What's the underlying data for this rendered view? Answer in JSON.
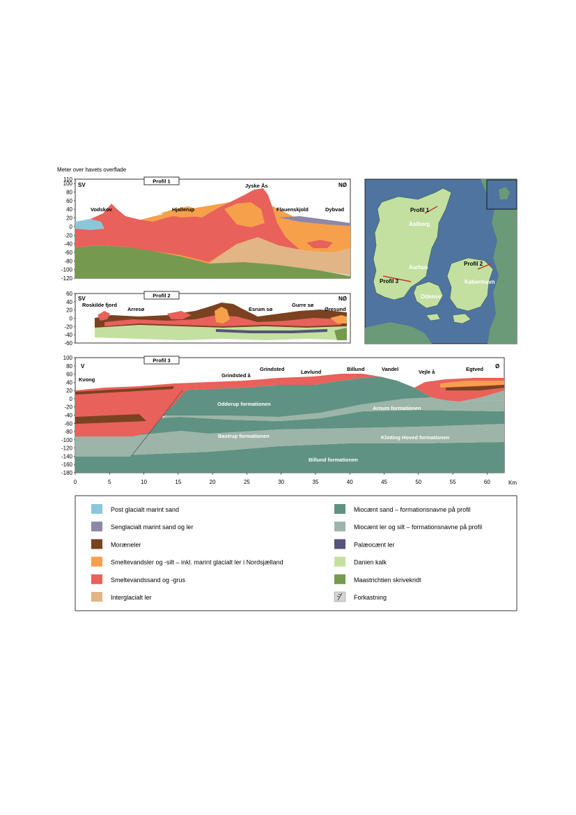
{
  "y_axis_title": "Meter over havets overflade",
  "profile1": {
    "title": "Profil 1",
    "dir_left": "SV",
    "dir_right": "NØ",
    "y_ticks": [
      "110",
      "100",
      "80",
      "60",
      "40",
      "20",
      "0",
      "-20",
      "-40",
      "-60",
      "-80",
      "-100",
      "-120"
    ],
    "places": [
      "Vodskov",
      "Hjallerup",
      "Jyske Ås",
      "Flauenskjold",
      "Dybvad"
    ]
  },
  "profile2": {
    "title": "Profil 2",
    "dir_left": "SV",
    "dir_right": "NØ",
    "y_ticks": [
      "60",
      "40",
      "20",
      "0",
      "-20",
      "-40",
      "-60"
    ],
    "places": [
      "Roskilde fjord",
      "Arresø",
      "Esrum sø",
      "Gurre sø",
      "Øresund"
    ]
  },
  "profile3": {
    "title": "Profil 3",
    "dir_left": "V",
    "dir_right": "Ø",
    "y_ticks": [
      "100",
      "80",
      "60",
      "40",
      "20",
      "0",
      "-20",
      "-40",
      "-60",
      "-80",
      "-100",
      "-120",
      "-140",
      "-160",
      "-180"
    ],
    "x_ticks": [
      "0",
      "5",
      "10",
      "15",
      "20",
      "25",
      "30",
      "35",
      "40",
      "45",
      "50",
      "55",
      "60"
    ],
    "x_unit": "Km",
    "places": [
      "Kvong",
      "Grindsted å",
      "Grindsted",
      "Løvlund",
      "Billund",
      "Vandel",
      "Vejle å",
      "Egtved"
    ],
    "formations": [
      "Odderup formationen",
      "Arnum formationen",
      "Bastrup formationen",
      "Klinting Hoved formationen",
      "Billund formationen"
    ]
  },
  "map": {
    "profile_labels": [
      "Profil 1",
      "Profil 2",
      "Profil 3"
    ],
    "cities": [
      "Aalborg",
      "Aarhus",
      "Odense",
      "København"
    ]
  },
  "legend": {
    "left": [
      {
        "label": "Post glacialt marint sand",
        "color": "#8cc6d9",
        "icon": "swatch"
      },
      {
        "label": "Senglacialt marint sand og ler",
        "color": "#8d87a8",
        "icon": "swatch"
      },
      {
        "label": "Moræneler",
        "color": "#7a4220",
        "icon": "swatch"
      },
      {
        "label": "Smeltevandsler og -silt – inkl. marint glacialt ler i Nordsjælland",
        "color": "#f6a04b",
        "icon": "swatch"
      },
      {
        "label": "Smeltevandssand og -grus",
        "color": "#e8615a",
        "icon": "swatch"
      },
      {
        "label": "Interglacialt ler",
        "color": "#e2b586",
        "icon": "swatch"
      }
    ],
    "right": [
      {
        "label": "Miocænt sand – formationsnavne på profil",
        "color": "#5f9283",
        "icon": "swatch"
      },
      {
        "label": "Miocænt ler og silt – formationsnavne på profil",
        "color": "#9db4a8",
        "icon": "swatch"
      },
      {
        "label": "Palæocænt ler",
        "color": "#55537a",
        "icon": "swatch"
      },
      {
        "label": "Danien kalk",
        "color": "#c3e0a1",
        "icon": "swatch"
      },
      {
        "label": "Maastrichtien skrivekridt",
        "color": "#759a4e",
        "icon": "swatch"
      },
      {
        "label": "Forkastning",
        "color": "#d4d4d4",
        "icon": "fault-icon"
      }
    ]
  }
}
